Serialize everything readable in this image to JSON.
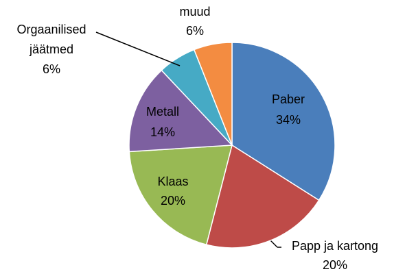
{
  "chart_data": {
    "type": "pie",
    "categories": [
      "Paber",
      "Papp ja kartong",
      "Klaas",
      "Metall",
      "Orgaanilised jäätmed",
      "muud"
    ],
    "values": [
      34,
      20,
      20,
      14,
      6,
      6
    ],
    "value_labels": [
      "34%",
      "20%",
      "20%",
      "14%",
      "6%",
      "6%"
    ],
    "colors": [
      "#4a7ebb",
      "#be4b48",
      "#98b954",
      "#7d60a0",
      "#46aac5",
      "#f38c41"
    ]
  }
}
